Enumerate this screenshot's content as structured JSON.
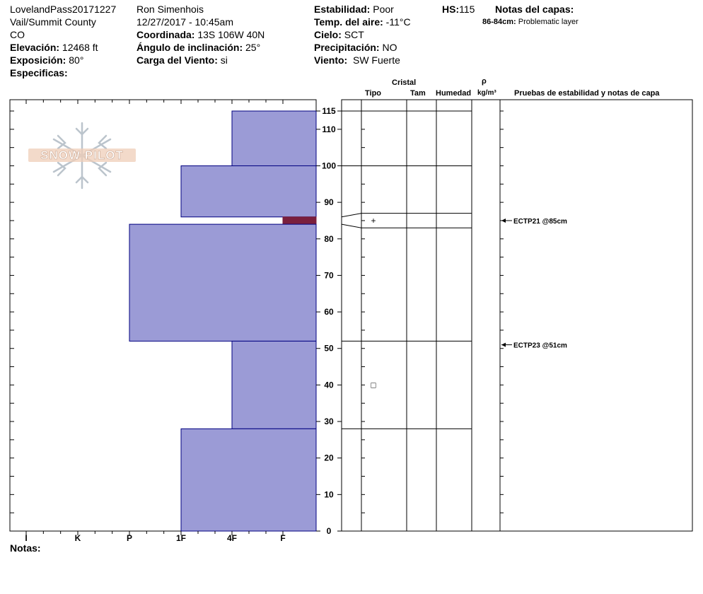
{
  "header": {
    "site_name": "LovelandPass20171227",
    "region": "Vail/Summit County",
    "state": "CO",
    "elevation_label": "Elevación:",
    "elevation_value": "12468 ft",
    "aspect_label": "Exposición:",
    "aspect_value": "80°",
    "specifics_label": "Especificas:",
    "observer": "Ron Simenhois",
    "datetime": "12/27/2017 - 10:45am",
    "coord_label": "Coordinada:",
    "coord_value": "13S 106W 40N",
    "slope_label": "Ángulo de inclinación:",
    "slope_value": "25°",
    "wind_load_label": "Carga del Viento:",
    "wind_load_value": "si",
    "stability_label": "Estabilidad:",
    "stability_value": "Poor",
    "air_temp_label": "Temp. del aire:",
    "air_temp_value": "-11°C",
    "sky_label": "Cielo:",
    "sky_value": "SCT",
    "precip_label": "Precipitación:",
    "precip_value": "NO",
    "wind_label": "Viento:",
    "wind_value": "SW Fuerte",
    "hs_label": "HS:",
    "hs_value": "115",
    "layer_notes_label": "Notas del capas:",
    "layer_note_range": "86-84cm:",
    "layer_note_text": "Problematic layer"
  },
  "logo_text": "SNOW PILOT",
  "notes_label": "Notas:",
  "table_headers": {
    "crystal": "Cristal",
    "type": "Tipo",
    "size": "Tam",
    "moisture": "Humedad",
    "rho": "ρ",
    "density_unit": "kg/m³",
    "tests": "Pruebas de estabilidad y notas de capa"
  },
  "colors": {
    "layer_fill": "#9b9bd6",
    "layer_stroke": "#000080",
    "weak_layer": "#7a1f3d"
  },
  "chart_data": {
    "type": "bar",
    "title": "",
    "ylabel": "",
    "ylim": [
      0,
      115
    ],
    "y_ticks": [
      0,
      10,
      20,
      30,
      40,
      50,
      60,
      70,
      80,
      90,
      100,
      110,
      115
    ],
    "hardness_scale": [
      "I",
      "K",
      "P",
      "1F",
      "4F",
      "F"
    ],
    "layers": [
      {
        "top": 115,
        "bottom": 100,
        "hardness": "4F"
      },
      {
        "top": 100,
        "bottom": 86,
        "hardness": "1F"
      },
      {
        "top": 86,
        "bottom": 84,
        "hardness": "F",
        "weak": true
      },
      {
        "top": 84,
        "bottom": 52,
        "hardness": "P"
      },
      {
        "top": 52,
        "bottom": 28,
        "hardness": "4F"
      },
      {
        "top": 28,
        "bottom": 0,
        "hardness": "1F"
      }
    ],
    "table_boundaries": [
      115,
      100,
      87,
      83,
      52,
      28
    ],
    "weak_band": {
      "from": 86,
      "to": 84
    },
    "crystals": [
      {
        "depth": 85,
        "symbol": "+"
      },
      {
        "depth": 40,
        "symbol": "□"
      }
    ],
    "tests": [
      {
        "depth": 85,
        "label": "ECTP21 @85cm"
      },
      {
        "depth": 51,
        "label": "ECTP23 @51cm"
      }
    ]
  }
}
